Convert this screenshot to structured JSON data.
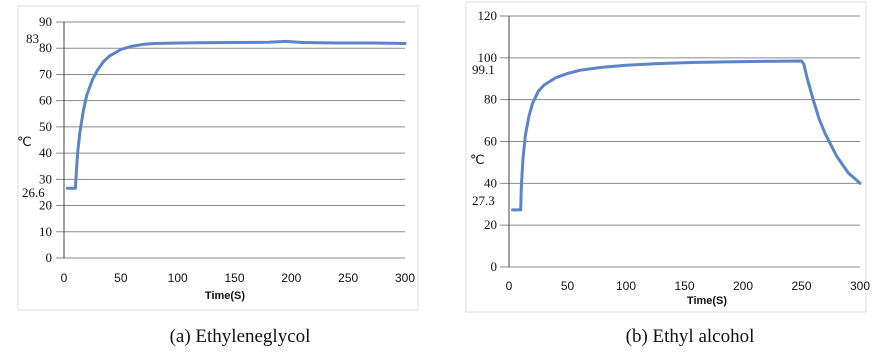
{
  "colors": {
    "series": "#5b85c7",
    "grid": "#8a8a8a",
    "frame": "#dddddd"
  },
  "chart_data": [
    {
      "type": "line",
      "caption": "(a) Ethyleneglycol",
      "xlabel": "Time(S)",
      "ylabel": "℃",
      "xlim": [
        0,
        300
      ],
      "ylim": [
        0,
        90
      ],
      "x_ticks": [
        "0",
        "50",
        "100",
        "150",
        "200",
        "250",
        "300"
      ],
      "y_ticks": [
        "0",
        "10",
        "20",
        "30",
        "40",
        "50",
        "60",
        "70",
        "80",
        "90"
      ],
      "annotations": [
        "83",
        "26.6"
      ],
      "grid": true,
      "series": [
        {
          "x": [
            3,
            10,
            10.5,
            12,
            14,
            17,
            20,
            25,
            30,
            35,
            40,
            50,
            60,
            70,
            80,
            100,
            120,
            150,
            180,
            195,
            210,
            240,
            270,
            300
          ],
          "y": [
            26.6,
            26.6,
            30,
            40,
            48,
            56,
            62,
            68,
            72,
            75,
            77,
            79.5,
            80.8,
            81.5,
            81.8,
            82,
            82.1,
            82.2,
            82.3,
            82.6,
            82.2,
            82,
            82,
            81.8
          ]
        }
      ]
    },
    {
      "type": "line",
      "caption": "(b)  Ethyl alcohol",
      "xlabel": "Time(S)",
      "ylabel": "℃",
      "xlim": [
        0,
        300
      ],
      "ylim": [
        0,
        120
      ],
      "x_ticks": [
        "0",
        "50",
        "100",
        "150",
        "200",
        "250",
        "300"
      ],
      "y_ticks": [
        "0",
        "20",
        "40",
        "60",
        "80",
        "100",
        "120"
      ],
      "annotations": [
        "99.1",
        "27.3"
      ],
      "grid": true,
      "series": [
        {
          "x": [
            3,
            10,
            10.5,
            12,
            14,
            17,
            20,
            25,
            30,
            40,
            50,
            60,
            80,
            100,
            130,
            160,
            200,
            230,
            250,
            252,
            255,
            260,
            265,
            270,
            280,
            290,
            300
          ],
          "y": [
            27.3,
            27.3,
            38,
            52,
            63,
            72,
            78,
            84,
            87,
            90.5,
            92.5,
            94,
            95.5,
            96.5,
            97.3,
            97.8,
            98.2,
            98.4,
            98.5,
            97,
            90,
            80,
            71,
            64,
            53,
            45,
            40
          ]
        }
      ]
    }
  ]
}
